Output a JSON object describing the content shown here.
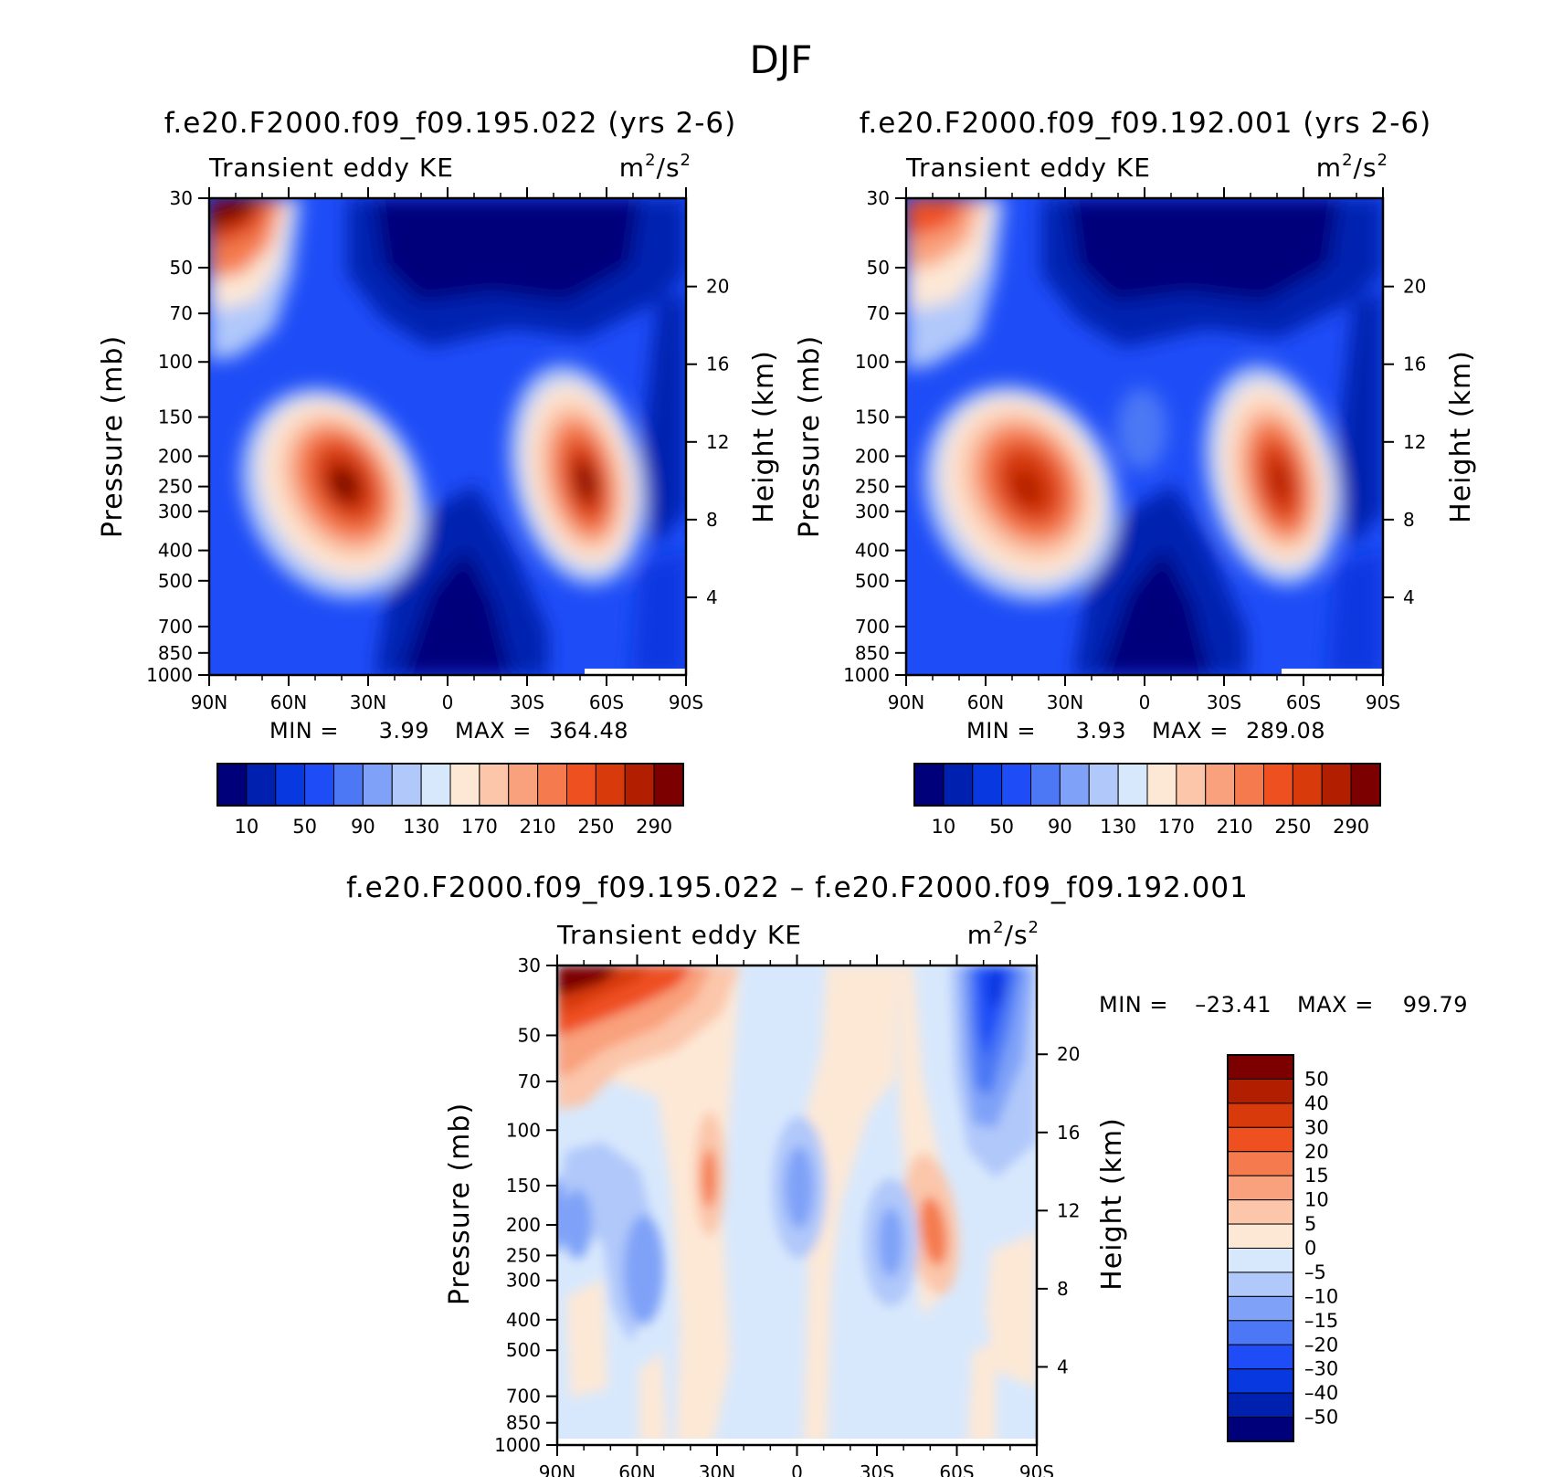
{
  "figure": {
    "title": "DJF"
  },
  "chart_data": [
    {
      "type": "contour",
      "title": "f.e20.F2000.f09_f09.195.022 (yrs 2-6)",
      "left_label": "Transient eddy KE",
      "units": "m²/s²",
      "units_base": "m",
      "units_exp": "2",
      "units_mid": "/s",
      "units_exp2": "2",
      "ylabel": "Pressure (mb)",
      "y2label": "Height (km)",
      "x_ticks": [
        "90N",
        "60N",
        "30N",
        "0",
        "30S",
        "60S",
        "90S"
      ],
      "y_ticks": [
        "30",
        "50",
        "70",
        "100",
        "150",
        "200",
        "250",
        "300",
        "400",
        "500",
        "700",
        "850",
        "1000"
      ],
      "y2_ticks": [
        "20",
        "16",
        "12",
        "8",
        "4"
      ],
      "stats_min_label": "MIN  =",
      "stats_min": "3.99",
      "stats_max_label": "MAX  =",
      "stats_max": "364.48",
      "colorbar_labels": [
        "10",
        "50",
        "90",
        "130",
        "170",
        "210",
        "250",
        "290"
      ],
      "colors": [
        "#00007a",
        "#0020b0",
        "#0838e0",
        "#1e4df7",
        "#4c78f5",
        "#7fa2f8",
        "#b0c8fa",
        "#d8e8fc",
        "#fde8d6",
        "#fbc6aa",
        "#f9a07c",
        "#f57a4d",
        "#ef5020",
        "#d83a0b",
        "#b11e00",
        "#7d0000"
      ],
      "features": [
        {
          "lat": 48,
          "pressure": 290,
          "value": 330
        },
        {
          "lat": -50,
          "pressure": 270,
          "value": 300
        },
        {
          "lat": 82,
          "pressure": 30,
          "value": 364.48
        }
      ]
    },
    {
      "type": "contour",
      "title": "f.e20.F2000.f09_f09.192.001 (yrs 2-6)",
      "left_label": "Transient eddy KE",
      "units": "m²/s²",
      "units_base": "m",
      "units_exp": "2",
      "units_mid": "/s",
      "units_exp2": "2",
      "ylabel": "Pressure (mb)",
      "y2label": "Height (km)",
      "x_ticks": [
        "90N",
        "60N",
        "30N",
        "0",
        "30S",
        "60S",
        "90S"
      ],
      "y_ticks": [
        "30",
        "50",
        "70",
        "100",
        "150",
        "200",
        "250",
        "300",
        "400",
        "500",
        "700",
        "850",
        "1000"
      ],
      "y2_ticks": [
        "20",
        "16",
        "12",
        "8",
        "4"
      ],
      "stats_min_label": "MIN  =",
      "stats_min": "3.93",
      "stats_max_label": "MAX  =",
      "stats_max": "289.08",
      "colorbar_labels": [
        "10",
        "50",
        "90",
        "130",
        "170",
        "210",
        "250",
        "290"
      ],
      "colors": [
        "#00007a",
        "#0020b0",
        "#0838e0",
        "#1e4df7",
        "#4c78f5",
        "#7fa2f8",
        "#b0c8fa",
        "#d8e8fc",
        "#fde8d6",
        "#fbc6aa",
        "#f9a07c",
        "#f57a4d",
        "#ef5020",
        "#d83a0b",
        "#b11e00",
        "#7d0000"
      ],
      "features": [
        {
          "lat": 48,
          "pressure": 290,
          "value": 289
        },
        {
          "lat": -50,
          "pressure": 260,
          "value": 270
        },
        {
          "lat": 82,
          "pressure": 30,
          "value": 240
        }
      ]
    },
    {
      "type": "contour",
      "title": "f.e20.F2000.f09_f09.195.022 – f.e20.F2000.f09_f09.192.001",
      "left_label": "Transient eddy KE",
      "units": "m²/s²",
      "units_base": "m",
      "units_exp": "2",
      "units_mid": "/s",
      "units_exp2": "2",
      "ylabel": "Pressure (mb)",
      "y2label": "Height (km)",
      "x_ticks": [
        "90N",
        "60N",
        "30N",
        "0",
        "30S",
        "60S",
        "90S"
      ],
      "y_ticks": [
        "30",
        "50",
        "70",
        "100",
        "150",
        "200",
        "250",
        "300",
        "400",
        "500",
        "700",
        "850",
        "1000"
      ],
      "y2_ticks": [
        "20",
        "16",
        "12",
        "8",
        "4"
      ],
      "stats_min_label": "MIN  =",
      "stats_min": "–23.41",
      "stats_max_label": "MAX  =",
      "stats_max": "99.79",
      "colorbar_labels": [
        "50",
        "40",
        "30",
        "20",
        "15",
        "10",
        "5",
        "0",
        "–5",
        "–10",
        "–15",
        "–20",
        "–30",
        "–40",
        "–50"
      ],
      "colors": [
        "#7d0000",
        "#b11e00",
        "#d83a0b",
        "#ef5020",
        "#f57a4d",
        "#f9a07c",
        "#fbc6aa",
        "#fde8d6",
        "#d8e8fc",
        "#b0c8fa",
        "#7fa2f8",
        "#4c78f5",
        "#1e4df7",
        "#0838e0",
        "#0020b0",
        "#00007a"
      ],
      "features": [
        {
          "lat": 82,
          "pressure": 30,
          "value": 99.79
        },
        {
          "lat": 33,
          "pressure": 170,
          "value": 25
        },
        {
          "lat": -50,
          "pressure": 210,
          "value": 25
        },
        {
          "lat": -65,
          "pressure": 50,
          "value": -23.41
        }
      ]
    }
  ]
}
